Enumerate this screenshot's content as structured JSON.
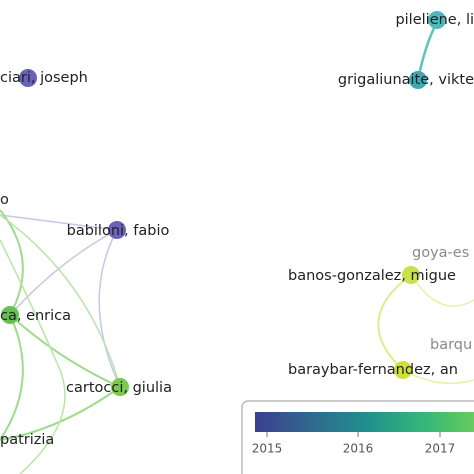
{
  "nodes": [
    {
      "label": "pileliene, li"
    },
    {
      "label": "grigaliunaite, vikte"
    },
    {
      "label": "ciari, joseph"
    },
    {
      "label": "o"
    },
    {
      "label": "babiloni, fabio"
    },
    {
      "label": "ca, enrica"
    },
    {
      "label": "cartocci, giulia"
    },
    {
      "label": "patrizia"
    },
    {
      "label": "goya-es"
    },
    {
      "label": "banos-gonzalez, migue"
    },
    {
      "label": "barqu"
    },
    {
      "label": "baraybar-fernandez, an"
    }
  ],
  "legend": {
    "ticks": [
      "2015",
      "2016",
      "2017"
    ]
  }
}
